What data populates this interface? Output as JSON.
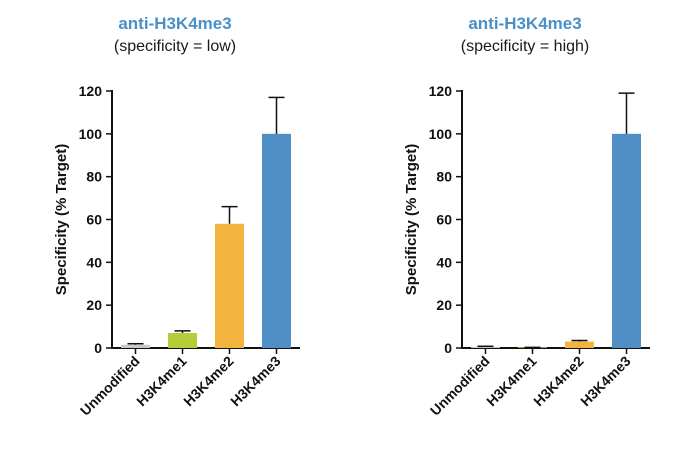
{
  "chart_data": [
    {
      "type": "bar",
      "title": "anti-H3K4me3",
      "subtitle": "(specificity = low)",
      "ylabel": "Specificity (% Target)",
      "xlabel": "",
      "ylim": [
        0,
        120
      ],
      "yticks": [
        0,
        20,
        40,
        60,
        80,
        100,
        120
      ],
      "categories": [
        "Unmodified",
        "H3K4me1",
        "H3K4me2",
        "H3K4me3"
      ],
      "values": [
        1.5,
        7,
        58,
        100
      ],
      "errors": [
        0.5,
        1,
        8,
        17
      ],
      "colors": [
        "#c8c8c8",
        "#b7cc3a",
        "#f2b43c",
        "#4f8fc6"
      ]
    },
    {
      "type": "bar",
      "title": "anti-H3K4me3",
      "subtitle": "(specificity = high)",
      "ylabel": "Specificity (% Target)",
      "xlabel": "",
      "ylim": [
        0,
        120
      ],
      "yticks": [
        0,
        20,
        40,
        60,
        80,
        100,
        120
      ],
      "categories": [
        "Unmodified",
        "H3K4me1",
        "H3K4me2",
        "H3K4me3"
      ],
      "values": [
        0.5,
        0.2,
        3,
        100
      ],
      "errors": [
        0.3,
        0.1,
        0.5,
        19
      ],
      "colors": [
        "#c8c8c8",
        "#b7cc3a",
        "#f2b43c",
        "#4f8fc6"
      ]
    }
  ]
}
